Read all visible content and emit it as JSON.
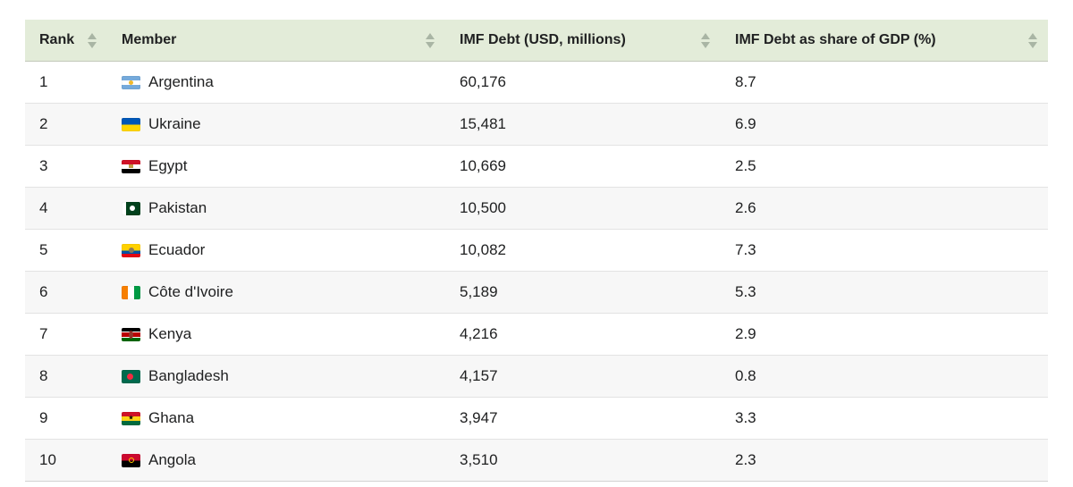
{
  "chart_data": {
    "type": "table",
    "columns": [
      "Rank",
      "Member",
      "IMF Debt (USD, millions)",
      "IMF Debt as share of GDP (%)"
    ],
    "rows": [
      [
        1,
        "Argentina",
        60176,
        8.7
      ],
      [
        2,
        "Ukraine",
        15481,
        6.9
      ],
      [
        3,
        "Egypt",
        10669,
        2.5
      ],
      [
        4,
        "Pakistan",
        10500,
        2.6
      ],
      [
        5,
        "Ecuador",
        10082,
        7.3
      ],
      [
        6,
        "Côte d'Ivoire",
        5189,
        5.3
      ],
      [
        7,
        "Kenya",
        4216,
        2.9
      ],
      [
        8,
        "Bangladesh",
        4157,
        0.8
      ],
      [
        9,
        "Ghana",
        3947,
        3.3
      ],
      [
        10,
        "Angola",
        3510,
        2.3
      ]
    ],
    "layout_hints": {
      "sortable_columns": true,
      "zebra_striping": true
    }
  },
  "table": {
    "columns": [
      {
        "label": "Rank"
      },
      {
        "label": "Member"
      },
      {
        "label": "IMF Debt (USD, millions)"
      },
      {
        "label": "IMF Debt as share of GDP (%)"
      }
    ],
    "rows": [
      {
        "rank": "1",
        "member": "Argentina",
        "flag_icon": "argentina-flag-icon",
        "debt": "60,176",
        "gdp_share": "8.7"
      },
      {
        "rank": "2",
        "member": "Ukraine",
        "flag_icon": "ukraine-flag-icon",
        "debt": "15,481",
        "gdp_share": "6.9"
      },
      {
        "rank": "3",
        "member": "Egypt",
        "flag_icon": "egypt-flag-icon",
        "debt": "10,669",
        "gdp_share": "2.5"
      },
      {
        "rank": "4",
        "member": "Pakistan",
        "flag_icon": "pakistan-flag-icon",
        "debt": "10,500",
        "gdp_share": "2.6"
      },
      {
        "rank": "5",
        "member": "Ecuador",
        "flag_icon": "ecuador-flag-icon",
        "debt": "10,082",
        "gdp_share": "7.3"
      },
      {
        "rank": "6",
        "member": "Côte d'Ivoire",
        "flag_icon": "cote-divoire-flag-icon",
        "debt": "5,189",
        "gdp_share": "5.3"
      },
      {
        "rank": "7",
        "member": "Kenya",
        "flag_icon": "kenya-flag-icon",
        "debt": "4,216",
        "gdp_share": "2.9"
      },
      {
        "rank": "8",
        "member": "Bangladesh",
        "flag_icon": "bangladesh-flag-icon",
        "debt": "4,157",
        "gdp_share": "0.8"
      },
      {
        "rank": "9",
        "member": "Ghana",
        "flag_icon": "ghana-flag-icon",
        "debt": "3,947",
        "gdp_share": "3.3"
      },
      {
        "rank": "10",
        "member": "Angola",
        "flag_icon": "angola-flag-icon",
        "debt": "3,510",
        "gdp_share": "2.3"
      }
    ]
  },
  "icons": {
    "sort": "sort-up-down-arrows-icon"
  },
  "colors": {
    "header_bg": "#e3ecd9",
    "alt_row_bg": "#f7f7f7",
    "sort_arrow": "#a9b5a4",
    "text": "#202122",
    "row_border": "#e3e3e3"
  }
}
